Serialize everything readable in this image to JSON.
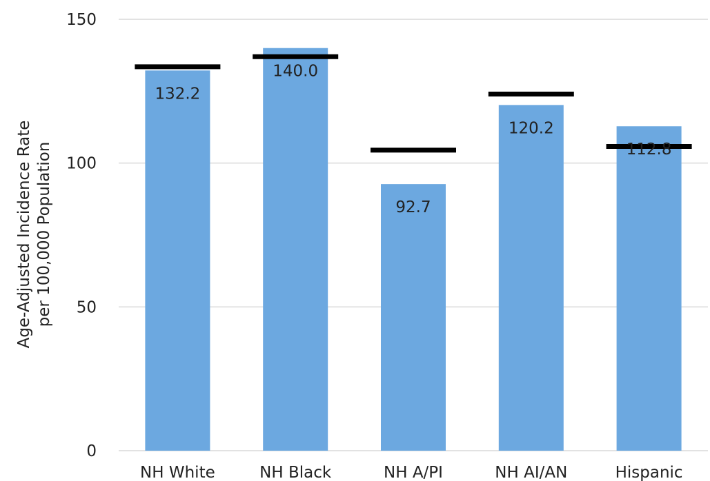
{
  "chart_data": {
    "type": "bar",
    "categories": [
      "NH White",
      "NH Black",
      "NH A/PI",
      "NH AI/AN",
      "Hispanic"
    ],
    "values": [
      132.2,
      140.0,
      92.7,
      120.2,
      112.8
    ],
    "data_labels": [
      "132.2",
      "140.0",
      "92.7",
      "120.2",
      "112.8"
    ],
    "reference_values": [
      133.5,
      137.0,
      104.5,
      124.0,
      105.8
    ],
    "ylabel_line1": "Age-Adjusted Incidence Rate",
    "ylabel_line2": "per 100,000 Population",
    "ylim": [
      0,
      150
    ],
    "yticks": [
      0,
      50,
      100,
      150
    ],
    "grid": true,
    "legend": "none",
    "bar_color": "#6CA8E0",
    "reference_color": "#000000",
    "grid_color": "#D9D9D9"
  }
}
